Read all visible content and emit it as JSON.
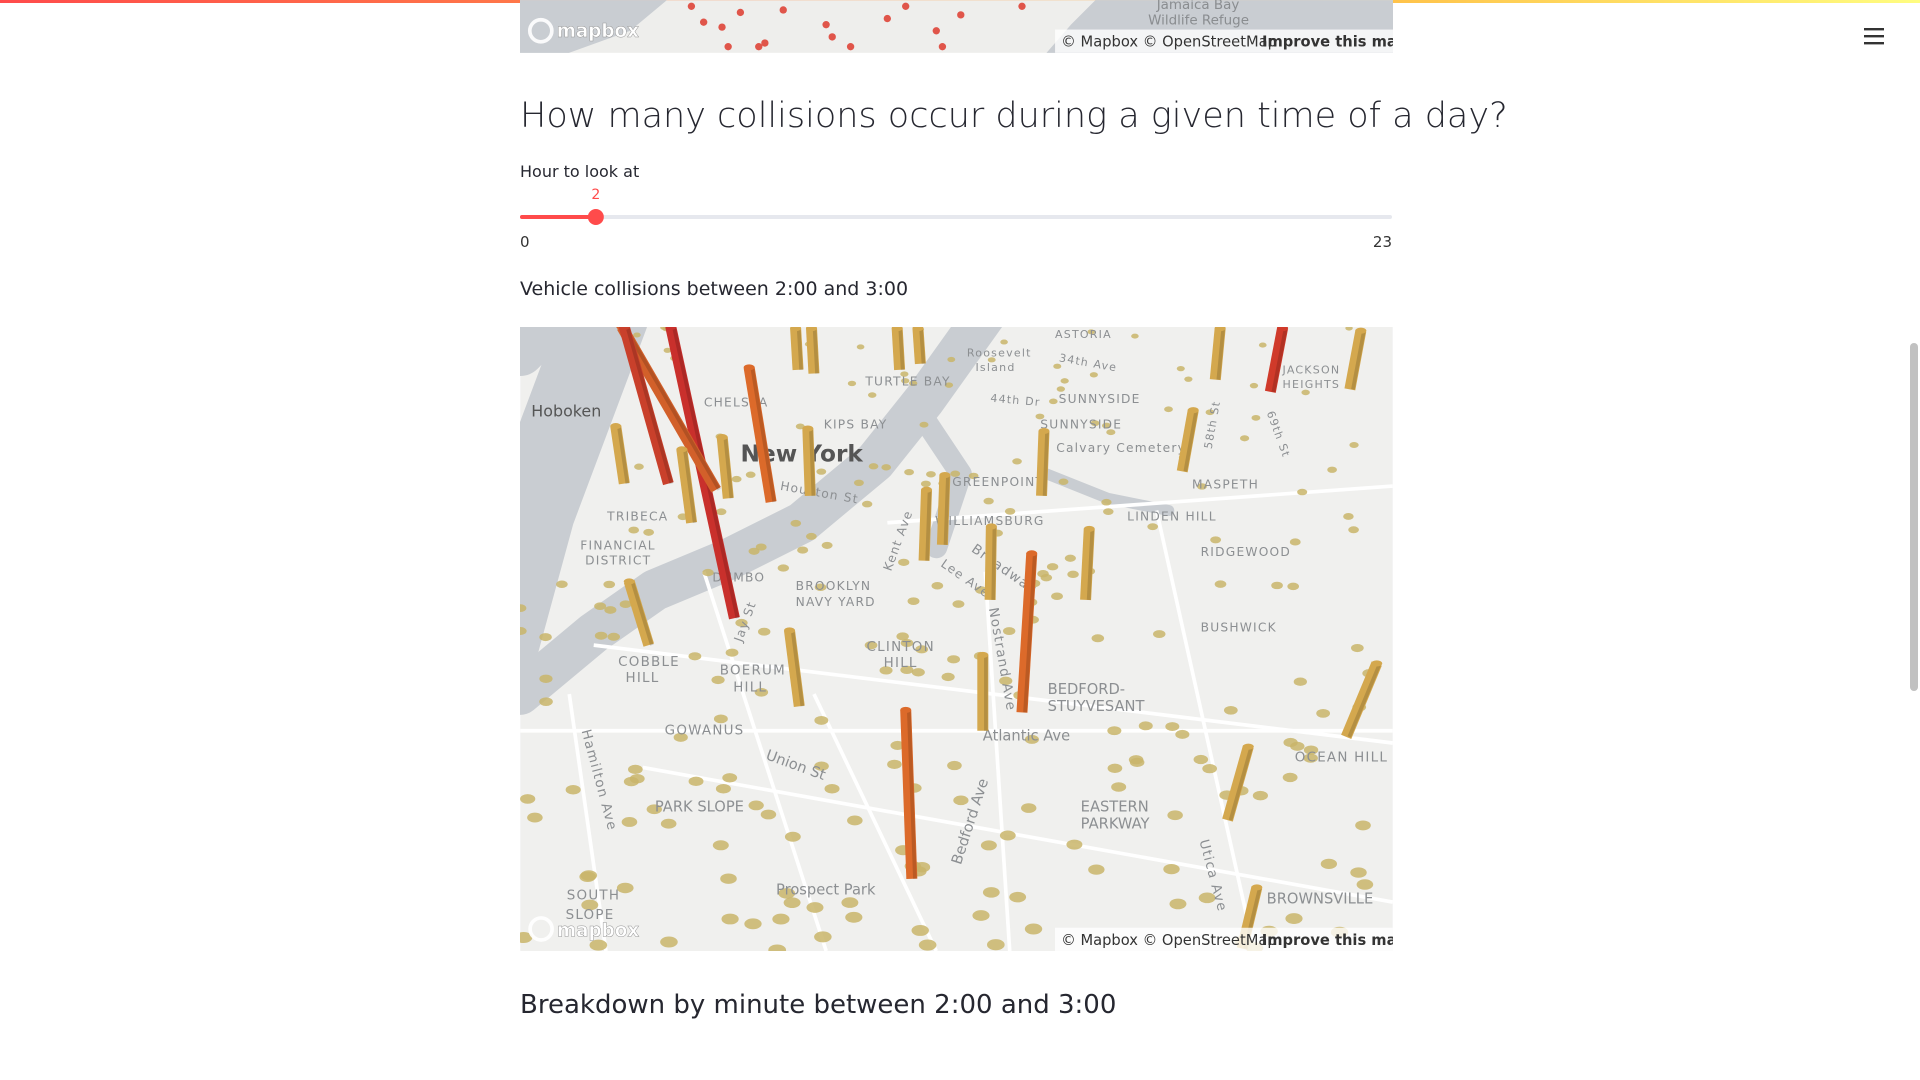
{
  "top_map": {
    "labels": [
      "Jamaica Bay",
      "Wildlife Refuge"
    ],
    "logo": "mapbox",
    "attribution": "© Mapbox © OpenStreetMap",
    "improve_link": "Improve this map"
  },
  "heading": "How many collisions occur during a given time of a day?",
  "slider": {
    "label": "Hour to look at",
    "value": 2,
    "min": 0,
    "max": 23
  },
  "caption": "Vehicle collisions between 2:00 and 3:00",
  "map": {
    "labels": [
      "Hoboken",
      "New York",
      "TRIBECA",
      "FINANCIAL",
      "DISTRICT",
      "DUMBO",
      "BROOKLYN",
      "NAVY YARD",
      "CLINTON",
      "HILL",
      "COBBLE",
      "HILL",
      "BOERUM",
      "HILL",
      "GOWANUS",
      "PARK SLOPE",
      "Prospect Park",
      "SOUTH",
      "SLOPE",
      "BEDFORD-",
      "STUYVESANT",
      "Atlantic Ave",
      "EASTERN",
      "PARKWAY",
      "BROWNSVILLE",
      "OCEAN HILL",
      "BUSHWICK",
      "RIDGEWOOD",
      "LINDEN HILL",
      "MASPETH",
      "GREENPOINT",
      "WILLIAMSBURG",
      "SUNNYSIDE",
      "SUNNYSIDE",
      "Calvary Cemetery",
      "Roosevelt",
      "Island",
      "ASTORIA",
      "JACKSON",
      "HEIGHTS",
      "Union St",
      "Kent Ave",
      "Bedford Ave",
      "Utica Ave",
      "Jay St",
      "Lee Ave",
      "Broadway",
      "Nostrand Ave",
      "Hamilton Ave",
      "Houston St",
      "CHELSEA",
      "KIPS BAY",
      "TURTLE BAY",
      "34th Ave",
      "44th Dr",
      "58th St",
      "69th St"
    ],
    "logo": "mapbox",
    "attribution": "© Mapbox © OpenStreetMap",
    "improve_link": "Improve this map"
  },
  "subheading": "Breakdown by minute between 2:00 and 3:00"
}
